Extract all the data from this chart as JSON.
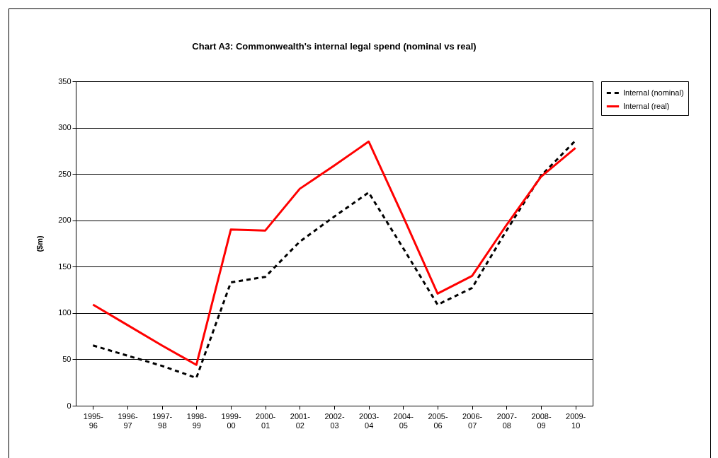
{
  "chart_data": {
    "type": "line",
    "title": "Chart A3: Commonwealth's internal legal spend (nominal vs real)",
    "ylabel": "($m)",
    "categories": [
      "1995-96",
      "1996-97",
      "1997-98",
      "1998-99",
      "1999-00",
      "2000-01",
      "2001-02",
      "2002-03",
      "2003-04",
      "2004-05",
      "2005-06",
      "2006-07",
      "2007-08",
      "2008-09",
      "2009-10"
    ],
    "series": [
      {
        "name": "Internal (nominal)",
        "color": "#000000",
        "line_style": "dashed",
        "values": [
          65,
          54,
          43,
          30,
          133,
          139,
          177,
          204,
          230,
          170,
          109,
          127,
          189,
          248,
          286
        ]
      },
      {
        "name": "Internal (real)",
        "color": "#ff0000",
        "line_style": "solid",
        "values": [
          109,
          87,
          65,
          44,
          190,
          189,
          234,
          259,
          285,
          204,
          121,
          140,
          195,
          247,
          278
        ]
      }
    ],
    "ylim": [
      0,
      350
    ],
    "yticks": [
      0,
      50,
      100,
      150,
      200,
      250,
      300,
      350
    ],
    "grid": "y",
    "legend": "right",
    "marker": "none"
  }
}
